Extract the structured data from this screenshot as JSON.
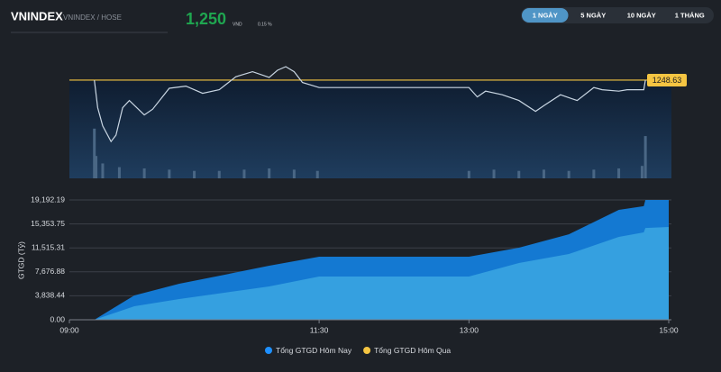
{
  "header": {
    "symbol": "VNINDEX",
    "exchange": "VNINDEX / HOSE",
    "price": "1,250",
    "currency": "VND",
    "change_percent": "0.15 %"
  },
  "tabs": [
    "1 NGÀY",
    "5 NGÀY",
    "10 NGÀY",
    "1 THÁNG"
  ],
  "active_tab": 0,
  "chart_data": [
    {
      "type": "line",
      "x": [
        "09:15",
        "09:17",
        "09:20",
        "09:25",
        "09:28",
        "09:32",
        "09:36",
        "09:45",
        "09:50",
        "10:00",
        "10:10",
        "10:20",
        "10:30",
        "10:40",
        "10:50",
        "11:00",
        "11:05",
        "11:10",
        "11:15",
        "11:20",
        "11:30",
        "13:00",
        "13:05",
        "13:10",
        "13:20",
        "13:30",
        "13:40",
        "13:45",
        "13:55",
        "14:05",
        "14:15",
        "14:20",
        "14:30",
        "14:35",
        "14:45",
        "14:46"
      ],
      "values": [
        1248.63,
        1244.8,
        1242.3,
        1240.1,
        1241.0,
        1244.8,
        1245.8,
        1243.8,
        1244.6,
        1247.5,
        1247.8,
        1246.8,
        1247.3,
        1249.1,
        1249.8,
        1249.0,
        1250.0,
        1250.5,
        1249.8,
        1248.3,
        1247.6,
        1247.6,
        1246.3,
        1247.1,
        1246.6,
        1245.8,
        1244.3,
        1245.1,
        1246.6,
        1245.8,
        1247.6,
        1247.3,
        1247.1,
        1247.3,
        1247.3,
        1248.63
      ],
      "color": "#c9d6e3",
      "reference": 1248.63,
      "reference_color": "#f5c542",
      "last_label": "1248.63",
      "xlim": [
        "09:00",
        "15:00"
      ],
      "ylim": [
        1235,
        1252.25
      ],
      "volume": {
        "x": [
          "09:15",
          "09:16",
          "09:20",
          "09:30",
          "09:45",
          "10:00",
          "10:15",
          "10:30",
          "10:45",
          "11:00",
          "11:15",
          "11:29",
          "13:00",
          "13:15",
          "13:30",
          "13:45",
          "14:00",
          "14:15",
          "14:30",
          "14:44",
          "14:46"
        ],
        "values": [
          40,
          18,
          12,
          9,
          8,
          7,
          6,
          6,
          7,
          8,
          7,
          6,
          6,
          7,
          6,
          7,
          6,
          7,
          8,
          10,
          34
        ],
        "ylim": [
          0,
          100
        ],
        "color": "#4a6785"
      }
    },
    {
      "type": "area",
      "x": [
        "09:15",
        "09:39",
        "10:06",
        "10:33",
        "11:00",
        "11:30",
        "13:00",
        "13:30",
        "14:00",
        "14:30",
        "14:45",
        "14:46",
        "15:00"
      ],
      "series": [
        {
          "name": "Tổng GTGD Hôm Nay",
          "color": "#1479d2",
          "legend_color": "#1e90ff",
          "values": [
            0,
            3900,
            5770,
            7200,
            8660,
            10100,
            10100,
            11540,
            13700,
            17600,
            18200,
            19192.19,
            19192.19
          ]
        },
        {
          "name": "Tổng GTGD Hôm Qua",
          "color": "#35a0e0",
          "legend_color": "#f5c542",
          "values": [
            0,
            2160,
            3320,
            4330,
            5340,
            6930,
            6930,
            9090,
            10530,
            13280,
            14000,
            14700,
            14860
          ]
        }
      ],
      "ylabel": "GTGD (Tỷ)",
      "xlim": [
        "09:00",
        "15:00"
      ],
      "xticks": [
        "09:00",
        "11:30",
        "13:00",
        "15:00"
      ],
      "ylim": [
        0,
        19192.19
      ],
      "yticks": [
        {
          "value": 0,
          "label": "0.00"
        },
        {
          "value": 3838.44,
          "label": "3,838.44"
        },
        {
          "value": 7676.88,
          "label": "7,676.88"
        },
        {
          "value": 11515.31,
          "label": "11,515.31"
        },
        {
          "value": 15353.75,
          "label": "15,353.75"
        },
        {
          "value": 19192.19,
          "label": "19,192.19"
        }
      ],
      "grid": true
    }
  ]
}
